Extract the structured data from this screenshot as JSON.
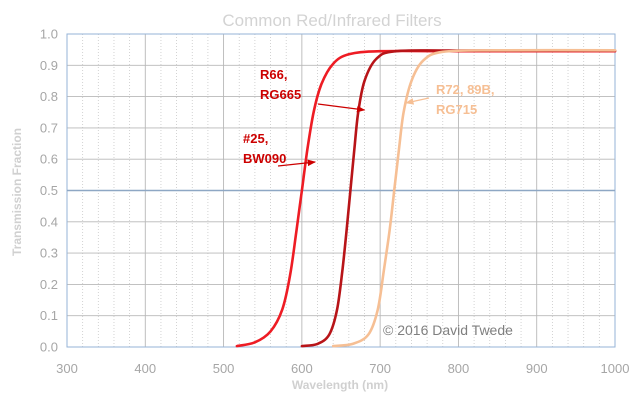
{
  "chart_data": {
    "type": "line",
    "title": "Common Red/Infrared Filters",
    "xlabel": "Wavelength (nm)",
    "ylabel": "Transmission Fraction",
    "xlim": [
      300,
      1000
    ],
    "ylim": [
      0,
      1.0
    ],
    "x_ticks": [
      300,
      400,
      500,
      600,
      700,
      800,
      900,
      1000
    ],
    "x_tick_labels": [
      "300",
      "400",
      "500",
      "600",
      "700",
      "800",
      "900",
      "1000"
    ],
    "y_ticks": [
      0,
      0.1,
      0.2,
      0.3,
      0.4,
      0.5,
      0.6,
      0.7,
      0.8,
      0.9,
      1.0
    ],
    "y_tick_labels": [
      "0.0",
      "0.1",
      "0.2",
      "0.3",
      "0.4",
      "0.5",
      "0.6",
      "0.7",
      "0.8",
      "0.9",
      "1.0"
    ],
    "grid": true,
    "reference_line": {
      "y": 0.5,
      "color": "#8ea7c4"
    },
    "series": [
      {
        "color": "#ee1c24",
        "points": [
          [
            517,
            0.003
          ],
          [
            540,
            0.015
          ],
          [
            560,
            0.05
          ],
          [
            575,
            0.12
          ],
          [
            585,
            0.23
          ],
          [
            593,
            0.37
          ],
          [
            600,
            0.5
          ],
          [
            607,
            0.63
          ],
          [
            615,
            0.75
          ],
          [
            625,
            0.84
          ],
          [
            640,
            0.905
          ],
          [
            660,
            0.935
          ],
          [
            700,
            0.945
          ],
          [
            800,
            0.945
          ],
          [
            1000,
            0.945
          ]
        ]
      },
      {
        "color": "#b81418",
        "points": [
          [
            600,
            0.003
          ],
          [
            620,
            0.01
          ],
          [
            635,
            0.04
          ],
          [
            645,
            0.12
          ],
          [
            652,
            0.25
          ],
          [
            657,
            0.37
          ],
          [
            662,
            0.5
          ],
          [
            667,
            0.63
          ],
          [
            672,
            0.75
          ],
          [
            680,
            0.85
          ],
          [
            695,
            0.92
          ],
          [
            720,
            0.945
          ],
          [
            800,
            0.947
          ],
          [
            1000,
            0.947
          ]
        ]
      },
      {
        "color": "#f6bf94",
        "points": [
          [
            640,
            0.003
          ],
          [
            665,
            0.01
          ],
          [
            685,
            0.04
          ],
          [
            697,
            0.12
          ],
          [
            705,
            0.25
          ],
          [
            712,
            0.37
          ],
          [
            718,
            0.5
          ],
          [
            724,
            0.63
          ],
          [
            730,
            0.75
          ],
          [
            740,
            0.85
          ],
          [
            755,
            0.915
          ],
          [
            780,
            0.943
          ],
          [
            850,
            0.948
          ],
          [
            1000,
            0.948
          ]
        ]
      }
    ],
    "annotations": [
      {
        "lines": [
          "R66,",
          "RG665"
        ],
        "color": "#cc0000",
        "arrow_to_x": 680
      },
      {
        "lines": [
          "#25,",
          "BW090"
        ],
        "color": "#cc0000",
        "arrow_to_x": 617
      },
      {
        "lines": [
          "R72, 89B,",
          "RG715"
        ],
        "color": "#f6bf94",
        "arrow_to_x": 733
      }
    ],
    "copyright": "© 2016 David Twede"
  }
}
